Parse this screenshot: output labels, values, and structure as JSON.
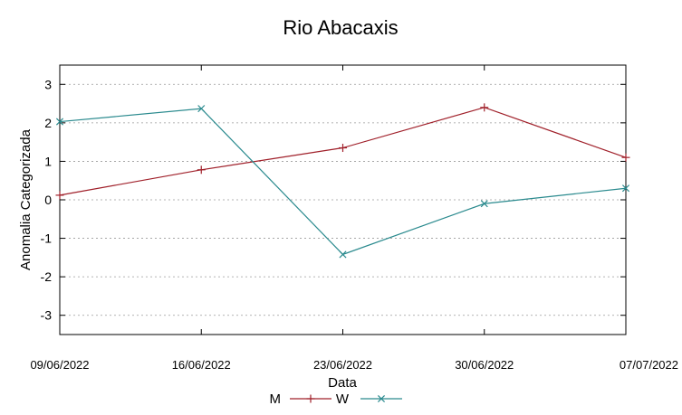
{
  "chart_data": {
    "type": "line",
    "title": "Rio Abacaxis",
    "xlabel": "Data",
    "ylabel": "Anomalia Categorizada",
    "categories": [
      "09/06/2022",
      "16/06/2022",
      "23/06/2022",
      "30/06/2022",
      "07/07/2022"
    ],
    "ylim": [
      -3.5,
      3.5
    ],
    "yticks": [
      -3,
      -2,
      -1,
      0,
      1,
      2,
      3
    ],
    "ytick_labels": [
      "-3",
      "-2",
      "-1",
      "0",
      "1",
      "2",
      "3"
    ],
    "grid": true,
    "legend_position": "bottom-center",
    "series": [
      {
        "name": "M",
        "values": [
          0.12,
          0.78,
          1.35,
          2.4,
          1.1
        ],
        "color": "#a0202a",
        "marker": "plus"
      },
      {
        "name": "W",
        "values": [
          2.03,
          2.37,
          -1.42,
          -0.1,
          0.3
        ],
        "color": "#2a8a8e",
        "marker": "cross"
      }
    ]
  }
}
